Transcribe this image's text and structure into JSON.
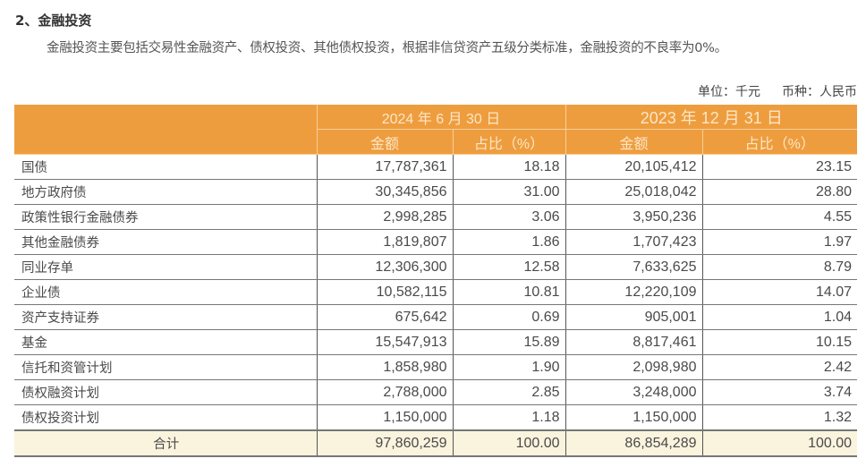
{
  "heading": "2、金融投资",
  "paragraph": "金融投资主要包括交易性金融资产、债权投资、其他债权投资，根据非信贷资产五级分类标准，金融投资的不良率为0%。",
  "unit": "单位：千元",
  "currency": "币种：人民币",
  "table": {
    "periods": [
      "2024 年 6 月 30 日",
      "2023 年 12 月 31 日"
    ],
    "subheaders": [
      "金额",
      "占比（%）",
      "金额",
      "占比（%）"
    ],
    "rows": [
      [
        "国债",
        "17,787,361",
        "18.18",
        "20,105,412",
        "23.15"
      ],
      [
        "地方政府债",
        "30,345,856",
        "31.00",
        "25,018,042",
        "28.80"
      ],
      [
        "政策性银行金融债券",
        "2,998,285",
        "3.06",
        "3,950,236",
        "4.55"
      ],
      [
        "其他金融债券",
        "1,819,807",
        "1.86",
        "1,707,423",
        "1.97"
      ],
      [
        "同业存单",
        "12,306,300",
        "12.58",
        "7,633,625",
        "8.79"
      ],
      [
        "企业债",
        "10,582,115",
        "10.81",
        "12,220,109",
        "14.07"
      ],
      [
        "资产支持证券",
        "675,642",
        "0.69",
        "905,001",
        "1.04"
      ],
      [
        "基金",
        "15,547,913",
        "15.89",
        "8,817,461",
        "10.15"
      ],
      [
        "信托和资管计划",
        "1,858,980",
        "1.90",
        "2,098,980",
        "2.42"
      ],
      [
        "债权融资计划",
        "2,788,000",
        "2.85",
        "3,248,000",
        "3.74"
      ],
      [
        "债权投资计划",
        "1,150,000",
        "1.18",
        "1,150,000",
        "1.32"
      ]
    ],
    "total": [
      "合计",
      "97,860,259",
      "100.00",
      "86,854,289",
      "100.00"
    ]
  },
  "colors": {
    "header_bg": "#EE9D3E",
    "header_text": "#FCE6C6",
    "total_bg": "#FAF3DE"
  }
}
